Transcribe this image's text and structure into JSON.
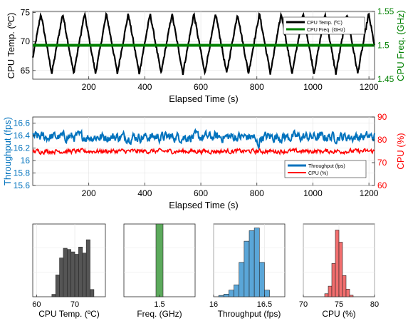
{
  "colors": {
    "temp": "#000000",
    "freq": "#008000",
    "throughput": "#0072BD",
    "cpu": "#FF0000",
    "hist_temp": "#555555",
    "hist_freq": "#5CAA5C",
    "hist_throughput": "#5AA6D8",
    "hist_cpu": "#F26E6E"
  },
  "chart_data": [
    {
      "type": "line",
      "xlabel": "Elapsed Time (s)",
      "xlim": [
        0,
        1220
      ],
      "xticks": [
        200,
        400,
        600,
        800,
        1000,
        1200
      ],
      "y_left": {
        "label": "CPU Temp. (ºC)",
        "lim": [
          63.5,
          75.2
        ],
        "ticks": [
          65,
          70,
          75
        ]
      },
      "y_right": {
        "label": "CPU Freq. (GHz)",
        "lim": [
          1.45,
          1.55
        ],
        "ticks": [
          1.45,
          1.5,
          1.55
        ],
        "tick_labels": [
          "1.45",
          "1.5",
          "1.55"
        ]
      },
      "legend": {
        "placement": "top-right"
      },
      "series": [
        {
          "name": "CPU Temp. (ºC)",
          "axis": "left",
          "color": "#000000",
          "pattern": "periodic triangle wave, period ~78 s, range 64.5–74.8",
          "period_s": 78,
          "min": 64.5,
          "max": 74.8
        },
        {
          "name": "CPU Freq. (GHz)",
          "axis": "right",
          "color": "#008000",
          "constant": 1.5
        }
      ]
    },
    {
      "type": "line",
      "xlabel": "Elapsed Time (s)",
      "xlim": [
        0,
        1220
      ],
      "xticks": [
        200,
        400,
        600,
        800,
        1000,
        1200
      ],
      "y_left": {
        "label": "Throughput (fps)",
        "lim": [
          15.6,
          16.7
        ],
        "ticks": [
          15.6,
          15.8,
          16,
          16.2,
          16.4,
          16.6
        ],
        "tick_labels": [
          "15.6",
          "15.8",
          "16",
          "16.2",
          "16.4",
          "16.6"
        ]
      },
      "y_right": {
        "label": "CPU (%)",
        "lim": [
          60,
          90
        ],
        "ticks": [
          60,
          70,
          80,
          90
        ]
      },
      "legend": {
        "placement": "bottom-right"
      },
      "series": [
        {
          "name": "Throughput (fps)",
          "axis": "left",
          "color": "#0072BD",
          "mean": 16.38,
          "spread": 0.08
        },
        {
          "name": "CPU (%)",
          "axis": "right",
          "color": "#FF0000",
          "mean": 75.0,
          "spread": 0.8
        }
      ]
    },
    {
      "type": "bar",
      "subtype": "histogram",
      "xlabel": "CPU Temp. (ºC)",
      "xlim": [
        59,
        78
      ],
      "xticks": [
        60,
        70
      ],
      "bin_edges": [
        64,
        65,
        66,
        67,
        68,
        69,
        70,
        71,
        72,
        73,
        74,
        75
      ],
      "counts": [
        2,
        18,
        32,
        40,
        39,
        37,
        35,
        41,
        36,
        47,
        6
      ],
      "ylim": [
        0,
        60
      ]
    },
    {
      "type": "bar",
      "subtype": "histogram",
      "xlabel": "Freq. (GHz)",
      "xlim": [
        1.4,
        1.6
      ],
      "xticks": [
        1.5
      ],
      "tick_labels": [
        "1.5"
      ],
      "bin_edges": [
        1.49,
        1.51
      ],
      "counts": [
        100
      ],
      "ylim": [
        0,
        100
      ]
    },
    {
      "type": "bar",
      "subtype": "histogram",
      "xlabel": "Throughput (fps)",
      "xlim": [
        16.0,
        16.7
      ],
      "xticks": [
        16,
        16.5
      ],
      "tick_labels": [
        "16",
        "16.5"
      ],
      "bin_edges": [
        16.05,
        16.1,
        16.15,
        16.2,
        16.25,
        16.3,
        16.35,
        16.4,
        16.45,
        16.5,
        16.55
      ],
      "counts": [
        1,
        2,
        5,
        9,
        26,
        42,
        50,
        52,
        26,
        5
      ],
      "ylim": [
        0,
        55
      ]
    },
    {
      "type": "bar",
      "subtype": "histogram",
      "xlabel": "CPU (%)",
      "xlim": [
        70,
        80
      ],
      "xticks": [
        70,
        75,
        80
      ],
      "bin_edges": [
        73.0,
        73.5,
        74.0,
        74.5,
        75.0,
        75.5,
        76.0,
        76.5,
        77.0
      ],
      "counts": [
        2,
        7,
        22,
        44,
        36,
        14,
        5,
        1
      ],
      "ylim": [
        0,
        48
      ]
    }
  ]
}
